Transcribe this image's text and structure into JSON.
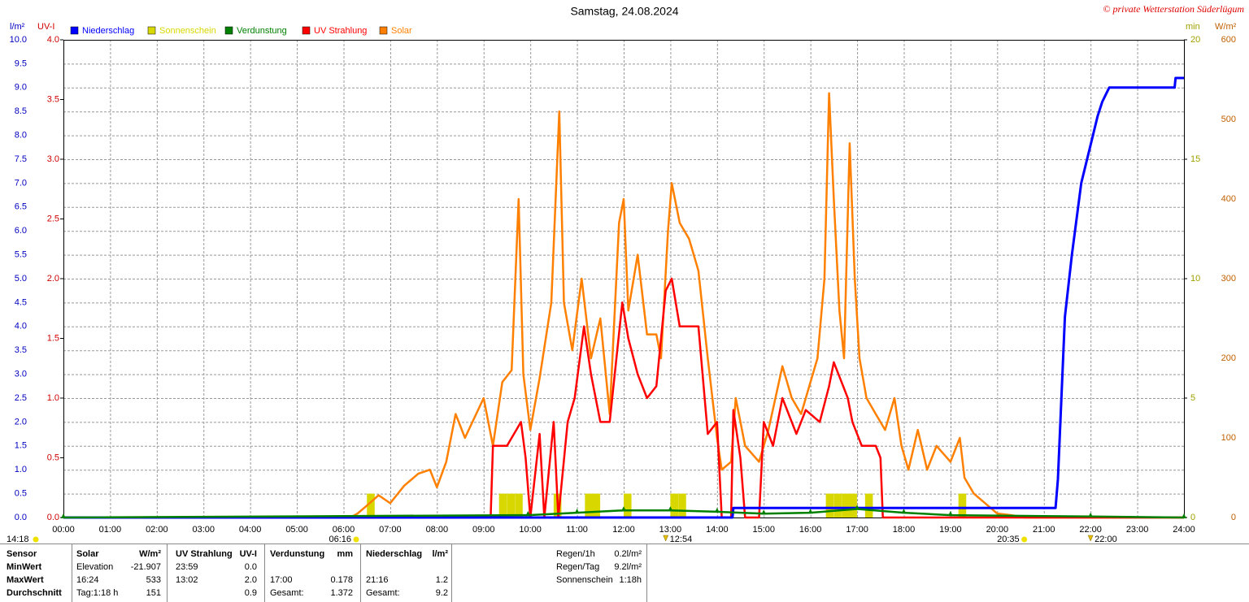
{
  "chart_data": {
    "type": "line",
    "title": "Samstag, 24.08.2024",
    "copyright": "© private Wetterstation Süderlügum",
    "y_label": "l/m²",
    "y2_label": "UV-I",
    "y3_label": "min",
    "y4_label": "W/m²",
    "xlim": [
      0,
      24
    ],
    "xticks": [
      {
        "value": 0,
        "label": "00:00"
      },
      {
        "value": 1,
        "label": "01:00"
      },
      {
        "value": 2,
        "label": "02:00"
      },
      {
        "value": 3,
        "label": "03:00"
      },
      {
        "value": 4,
        "label": "04:00"
      },
      {
        "value": 5,
        "label": "05:00"
      },
      {
        "value": 6,
        "label": "06:00"
      },
      {
        "value": 7,
        "label": "07:00"
      },
      {
        "value": 8,
        "label": "08:00"
      },
      {
        "value": 9,
        "label": "09:00"
      },
      {
        "value": 10,
        "label": "10:00"
      },
      {
        "value": 11,
        "label": "11:00"
      },
      {
        "value": 12,
        "label": "12:00"
      },
      {
        "value": 13,
        "label": "13:00"
      },
      {
        "value": 14,
        "label": "14:00"
      },
      {
        "value": 15,
        "label": "15:00"
      },
      {
        "value": 16,
        "label": "16:00"
      },
      {
        "value": 17,
        "label": "17:00"
      },
      {
        "value": 18,
        "label": "18:00"
      },
      {
        "value": 19,
        "label": "19:00"
      },
      {
        "value": 20,
        "label": "20:00"
      },
      {
        "value": 21,
        "label": "21:00"
      },
      {
        "value": 22,
        "label": "22:00"
      },
      {
        "value": 23,
        "label": "23:00"
      },
      {
        "value": 24,
        "label": "24:00"
      }
    ],
    "ylim": [
      0,
      10
    ],
    "yticks": [
      {
        "value": 0,
        "label": "0.0"
      },
      0.5,
      {
        "value": 1,
        "label": "1.0"
      },
      1.5,
      {
        "value": 2,
        "label": "2.0"
      },
      2.5,
      {
        "value": 3,
        "label": "3.0"
      },
      3.5,
      {
        "value": 4,
        "label": "4.0"
      },
      4.5,
      {
        "value": 5,
        "label": "5.0"
      },
      5.5,
      {
        "value": 6,
        "label": "6.0"
      },
      6.5,
      {
        "value": 7,
        "label": "7.0"
      },
      7.5,
      {
        "value": 8,
        "label": "8.0"
      },
      8.5,
      {
        "value": 9,
        "label": "9.0"
      },
      9.5,
      {
        "value": 10,
        "label": "10.0"
      }
    ],
    "y2lim": [
      0,
      4
    ],
    "y2ticks": [
      {
        "value": 0,
        "label": "0.0"
      },
      0.5,
      {
        "value": 1,
        "label": "1.0"
      },
      1.5,
      {
        "value": 2,
        "label": "2.0"
      },
      2.5,
      {
        "value": 3,
        "label": "3.0"
      },
      3.5,
      {
        "value": 4,
        "label": "4.0"
      }
    ],
    "y3lim": [
      0,
      20
    ],
    "y3ticks": [
      0,
      5,
      10,
      15,
      20
    ],
    "y4lim": [
      0,
      600
    ],
    "y4ticks": [
      0,
      100,
      200,
      300,
      400,
      500,
      600
    ],
    "grid": true,
    "series": [
      {
        "name": "Niederschlag",
        "color": "#0000ff",
        "axis": "y",
        "x": [
          0,
          14.33,
          14.35,
          21.25,
          21.3,
          21.45,
          21.6,
          21.8,
          22.0,
          22.15,
          22.25,
          22.4,
          23.8,
          23.82,
          24
        ],
        "values": [
          0,
          0,
          0.2,
          0.2,
          0.8,
          4.2,
          5.5,
          7.0,
          7.8,
          8.4,
          8.7,
          9.0,
          9.0,
          9.2,
          9.2
        ]
      },
      {
        "name": "Sonnenschein",
        "color": "#d8d800",
        "axis": "y3",
        "type": "bar",
        "x": [
          6.5,
          9.33,
          9.5,
          9.67,
          10.5,
          11.17,
          11.33,
          12.0,
          13.0,
          13.17,
          16.33,
          16.5,
          16.67,
          16.83,
          17.17,
          19.17
        ],
        "values": [
          1,
          1,
          1,
          1,
          1,
          1,
          1,
          1,
          1,
          1,
          1,
          1,
          1,
          1,
          1,
          1
        ]
      },
      {
        "name": "Verdunstung",
        "color": "#008000",
        "axis": "y",
        "x": [
          0,
          9.95,
          11,
          12,
          13,
          14,
          15,
          16,
          17,
          18,
          19,
          22,
          24
        ],
        "values": [
          0,
          0.05,
          0.1,
          0.15,
          0.15,
          0.12,
          0.08,
          0.1,
          0.178,
          0.1,
          0.05,
          0.02,
          0
        ]
      },
      {
        "name": "UV Strahlung",
        "color": "#ff0000",
        "axis": "y2",
        "x": [
          0,
          9.15,
          9.2,
          9.5,
          9.8,
          9.9,
          10.0,
          10.2,
          10.3,
          10.5,
          10.6,
          10.8,
          10.95,
          11.15,
          11.3,
          11.5,
          11.7,
          11.97,
          12.1,
          12.3,
          12.5,
          12.7,
          12.9,
          13.03,
          13.2,
          13.4,
          13.6,
          13.8,
          14.0,
          14.1,
          14.3,
          14.35,
          14.5,
          14.6,
          14.9,
          15.0,
          15.2,
          15.4,
          15.7,
          15.9,
          16.2,
          16.4,
          16.5,
          16.7,
          16.8,
          16.9,
          17.1,
          17.4,
          17.5,
          17.55,
          24
        ],
        "values": [
          0,
          0,
          0.6,
          0.6,
          0.8,
          0.5,
          0,
          0.7,
          0,
          0.8,
          0,
          0.8,
          1.0,
          1.6,
          1.2,
          0.8,
          0.8,
          1.8,
          1.5,
          1.2,
          1.0,
          1.1,
          1.9,
          2.0,
          1.6,
          1.6,
          1.6,
          0.7,
          0.8,
          0,
          0,
          0.9,
          0.5,
          0,
          0,
          0.8,
          0.6,
          1.0,
          0.7,
          0.9,
          0.8,
          1.1,
          1.3,
          1.1,
          1.0,
          0.8,
          0.6,
          0.6,
          0.5,
          0,
          0
        ]
      },
      {
        "name": "Solar",
        "color": "#ff8000",
        "axis": "y4",
        "x": [
          0,
          6.15,
          6.3,
          6.5,
          6.75,
          7.0,
          7.3,
          7.6,
          7.85,
          8.0,
          8.2,
          8.4,
          8.6,
          8.8,
          9.0,
          9.2,
          9.4,
          9.6,
          9.75,
          9.85,
          10.0,
          10.2,
          10.45,
          10.62,
          10.72,
          10.9,
          11.1,
          11.3,
          11.5,
          11.7,
          11.9,
          12.0,
          12.1,
          12.3,
          12.5,
          12.7,
          12.8,
          12.95,
          13.03,
          13.2,
          13.4,
          13.6,
          13.8,
          14.0,
          14.1,
          14.3,
          14.4,
          14.6,
          14.9,
          15.1,
          15.4,
          15.6,
          15.8,
          16.0,
          16.15,
          16.3,
          16.4,
          16.5,
          16.62,
          16.72,
          16.84,
          16.95,
          17.05,
          17.2,
          17.4,
          17.6,
          17.8,
          17.95,
          18.1,
          18.3,
          18.5,
          18.7,
          19.0,
          19.2,
          19.3,
          19.5,
          19.8,
          20.0,
          20.3,
          20.58,
          24
        ],
        "values": [
          0,
          0,
          5,
          15,
          28,
          18,
          40,
          55,
          60,
          38,
          70,
          130,
          100,
          125,
          150,
          90,
          170,
          185,
          400,
          180,
          110,
          175,
          270,
          510,
          270,
          210,
          300,
          200,
          250,
          130,
          370,
          400,
          260,
          330,
          230,
          230,
          200,
          360,
          420,
          370,
          350,
          310,
          200,
          100,
          60,
          70,
          150,
          90,
          70,
          110,
          190,
          150,
          130,
          170,
          200,
          300,
          533,
          400,
          260,
          200,
          470,
          300,
          200,
          150,
          130,
          110,
          150,
          90,
          60,
          110,
          60,
          90,
          70,
          100,
          50,
          30,
          15,
          5,
          3,
          0,
          0
        ]
      }
    ],
    "moon_label": "14:18",
    "events": [
      {
        "label": "06:16",
        "x": 6.27,
        "marker": "dot"
      },
      {
        "label": "12:54",
        "x": 12.9,
        "marker": "triangle"
      },
      {
        "label": "20:35",
        "x": 20.58,
        "marker": "dot"
      },
      {
        "label": "22:00",
        "x": 22.0,
        "marker": "triangle"
      }
    ]
  },
  "table": {
    "header": [
      "Sensor",
      "Solar",
      "W/m²",
      "UV Strahlung",
      "UV-I",
      "Verdunstung",
      "mm",
      "Niederschlag",
      "l/m²"
    ],
    "rows": [
      [
        "MinWert",
        "Elevation",
        "-21.907",
        "23:59",
        "0.0",
        null,
        null,
        null,
        null
      ],
      [
        "MaxWert",
        "16:24",
        "533",
        "13:02",
        "2.0",
        "17:00",
        "0.178",
        "21:16",
        "1.2"
      ],
      [
        "Durchschnitt",
        "Tag:1:18 h",
        "151",
        null,
        "0.9",
        "Gesamt:",
        "1.372",
        "Gesamt:",
        "9.2"
      ]
    ]
  },
  "info": [
    {
      "label": "Regen/1h",
      "value": "0.2l/m²"
    },
    {
      "label": "Regen/Tag",
      "value": "9.2l/m²"
    },
    {
      "label": "Sonnenschein",
      "value": "1:18h"
    }
  ]
}
